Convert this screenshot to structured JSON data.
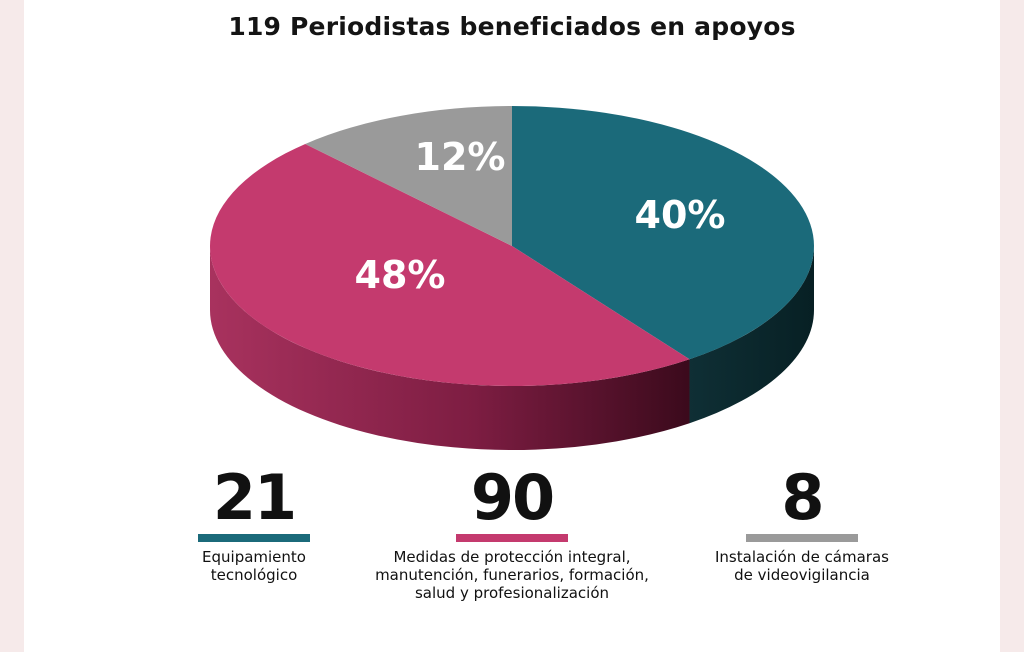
{
  "title": "119 Periodistas beneficiados en apoyos",
  "colors": {
    "teal": "#1b6a7a",
    "magenta": "#c43a6e",
    "gray": "#9a9a9a"
  },
  "chart_data": {
    "type": "pie",
    "title": "119 Periodistas beneficiados en apoyos",
    "slices": [
      {
        "label": "40%",
        "value": 40,
        "color": "#1b6a7a"
      },
      {
        "label": "48%",
        "value": 48,
        "color": "#c43a6e"
      },
      {
        "label": "12%",
        "value": 12,
        "color": "#9a9a9a"
      }
    ]
  },
  "stats": [
    {
      "number": "21",
      "color": "#1b6a7a",
      "lines": [
        "Equipamiento",
        "tecnológico"
      ]
    },
    {
      "number": "90",
      "color": "#c43a6e",
      "lines": [
        "Medidas de protección integral,",
        "manutención, funerarios, formación,",
        "salud y profesionalización"
      ]
    },
    {
      "number": "8",
      "color": "#9a9a9a",
      "lines": [
        "Instalación de cámaras",
        "de videovigilancia"
      ]
    }
  ]
}
